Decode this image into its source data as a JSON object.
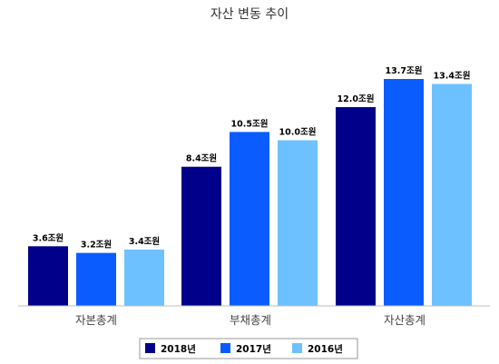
{
  "chart_data": {
    "type": "bar",
    "title": "자산 변동 추이",
    "categories": [
      "자본총계",
      "부채총계",
      "자산총계"
    ],
    "series": [
      {
        "name": "2018년",
        "color": "#00008b",
        "values": [
          3.6,
          8.4,
          12.0
        ],
        "labels": [
          "3.6조원",
          "8.4조원",
          "12.0조원"
        ]
      },
      {
        "name": "2017년",
        "color": "#0b5cff",
        "values": [
          3.2,
          10.5,
          13.7
        ],
        "labels": [
          "3.2조원",
          "10.5조원",
          "13.7조원"
        ]
      },
      {
        "name": "2016년",
        "color": "#6ec1ff",
        "values": [
          3.4,
          10.0,
          13.4
        ],
        "labels": [
          "3.4조원",
          "10.0조원",
          "13.4조원"
        ]
      }
    ],
    "ylim": [
      0,
      13.7
    ],
    "legend_position": "bottom",
    "grid": false
  }
}
